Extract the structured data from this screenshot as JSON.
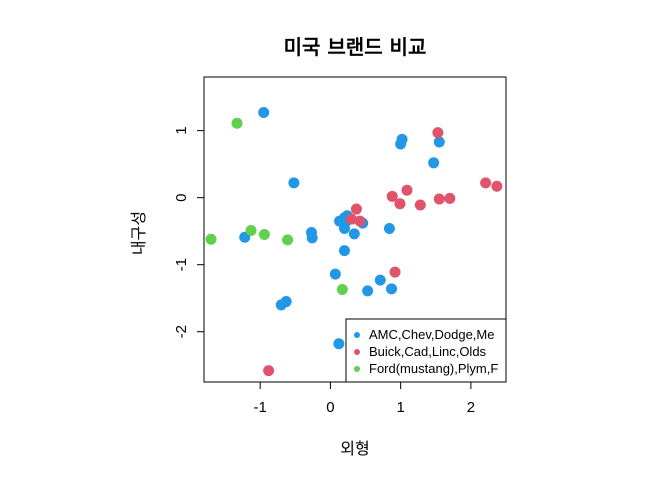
{
  "chart_data": {
    "type": "scatter",
    "title": "미국 브랜드 비교",
    "xlabel": "외형",
    "ylabel": "내구성",
    "xlim": [
      -1.8,
      2.5
    ],
    "ylim": [
      -2.75,
      1.8
    ],
    "xticks": [
      -1,
      0,
      1,
      2
    ],
    "xtick_labels": [
      "-1",
      "0",
      "1",
      "2"
    ],
    "yticks": [
      -2,
      -1,
      0,
      1
    ],
    "ytick_labels": [
      "-2",
      "-1",
      "0",
      "1"
    ],
    "legend_position": "bottom-right",
    "series": [
      {
        "name": "AMC,Chev,Dodge,Me",
        "color": "#2297E6",
        "points": [
          [
            -0.95,
            1.27
          ],
          [
            -0.52,
            0.22
          ],
          [
            -1.22,
            -0.59
          ],
          [
            -0.27,
            -0.52
          ],
          [
            -0.26,
            -0.6
          ],
          [
            0.13,
            -0.35
          ],
          [
            0.2,
            -0.3
          ],
          [
            0.24,
            -0.27
          ],
          [
            0.22,
            -0.36
          ],
          [
            0.2,
            -0.46
          ],
          [
            0.34,
            -0.54
          ],
          [
            0.46,
            -0.38
          ],
          [
            0.2,
            -0.79
          ],
          [
            0.07,
            -1.14
          ],
          [
            0.84,
            -0.46
          ],
          [
            0.71,
            -1.23
          ],
          [
            0.53,
            -1.39
          ],
          [
            0.87,
            -1.36
          ],
          [
            -0.63,
            -1.55
          ],
          [
            -0.7,
            -1.6
          ],
          [
            0.12,
            -2.18
          ],
          [
            1.0,
            0.8
          ],
          [
            1.02,
            0.87
          ],
          [
            1.55,
            0.83
          ],
          [
            1.47,
            0.52
          ]
        ]
      },
      {
        "name": "Buick,Cad,Linc,Olds",
        "color": "#DF536B",
        "points": [
          [
            1.53,
            0.97
          ],
          [
            0.37,
            -0.17
          ],
          [
            0.3,
            -0.32
          ],
          [
            0.42,
            -0.35
          ],
          [
            0.88,
            0.02
          ],
          [
            0.99,
            -0.09
          ],
          [
            1.09,
            0.11
          ],
          [
            1.28,
            -0.11
          ],
          [
            1.55,
            -0.02
          ],
          [
            1.7,
            -0.01
          ],
          [
            2.21,
            0.22
          ],
          [
            2.37,
            0.17
          ],
          [
            0.92,
            -1.11
          ],
          [
            -0.88,
            -2.58
          ]
        ]
      },
      {
        "name": "Ford(mustang),Plym,F",
        "color": "#61D04F",
        "points": [
          [
            -1.33,
            1.11
          ],
          [
            -1.7,
            -0.62
          ],
          [
            -1.13,
            -0.49
          ],
          [
            -0.94,
            -0.55
          ],
          [
            -0.61,
            -0.63
          ],
          [
            0.17,
            -1.37
          ]
        ]
      }
    ]
  }
}
